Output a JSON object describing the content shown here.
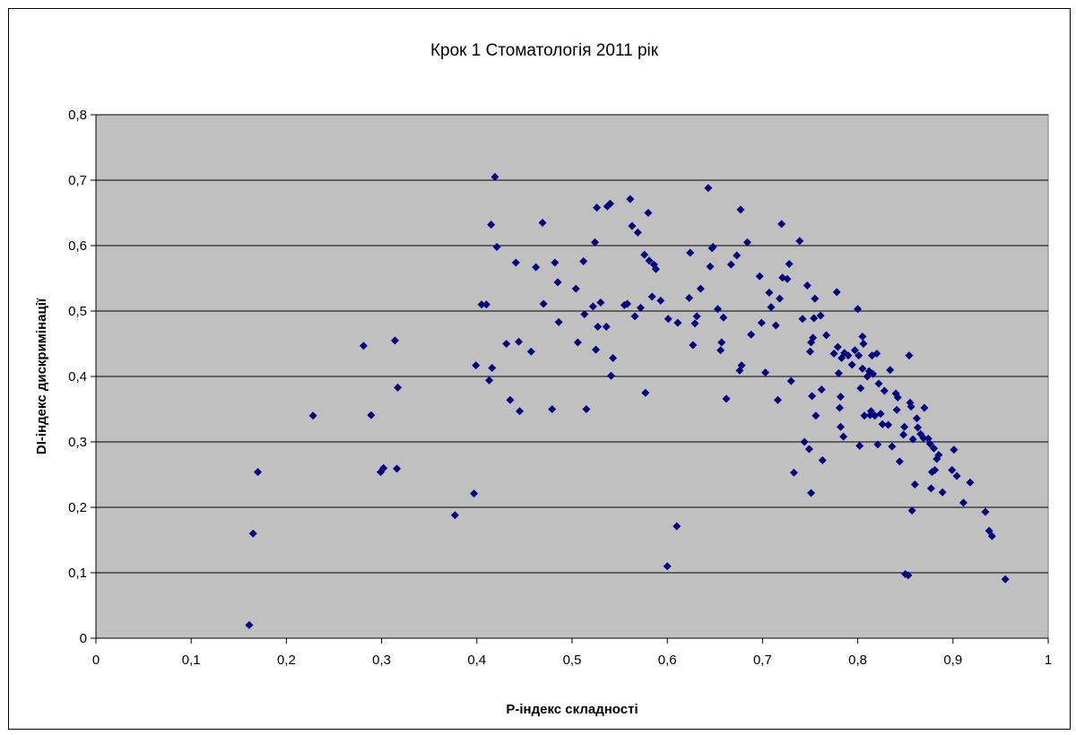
{
  "chart_data": {
    "type": "scatter",
    "title": "Крок 1 Стоматологія 2011 рік",
    "xlabel": "P-індекс складності",
    "ylabel": "DI-індекс дискримінації",
    "xlim": [
      0,
      1
    ],
    "ylim": [
      0,
      0.8
    ],
    "xticks": [
      0,
      0.1,
      0.2,
      0.3,
      0.4,
      0.5,
      0.6,
      0.7,
      0.8,
      0.9,
      1
    ],
    "yticks": [
      0,
      0.1,
      0.2,
      0.3,
      0.4,
      0.5,
      0.6,
      0.7,
      0.8
    ],
    "xtick_labels": [
      "0",
      "0,1",
      "0,2",
      "0,3",
      "0,4",
      "0,5",
      "0,6",
      "0,7",
      "0,8",
      "0,9",
      "1"
    ],
    "ytick_labels": [
      "0",
      "0,1",
      "0,2",
      "0,3",
      "0,4",
      "0,5",
      "0,6",
      "0,7",
      "0,8"
    ],
    "grid": "horizontal",
    "legend": "none",
    "colors": {
      "marker": "#000080",
      "plot_background": "#c0c0c0",
      "gridline": "#000000"
    },
    "points": [
      [
        0.161,
        0.02
      ],
      [
        0.165,
        0.16
      ],
      [
        0.17,
        0.254
      ],
      [
        0.228,
        0.34
      ],
      [
        0.281,
        0.447
      ],
      [
        0.289,
        0.341
      ],
      [
        0.299,
        0.254
      ],
      [
        0.302,
        0.26
      ],
      [
        0.314,
        0.455
      ],
      [
        0.316,
        0.259
      ],
      [
        0.317,
        0.383
      ],
      [
        0.377,
        0.188
      ],
      [
        0.397,
        0.221
      ],
      [
        0.399,
        0.417
      ],
      [
        0.405,
        0.51
      ],
      [
        0.41,
        0.51
      ],
      [
        0.413,
        0.394
      ],
      [
        0.415,
        0.632
      ],
      [
        0.416,
        0.413
      ],
      [
        0.419,
        0.705
      ],
      [
        0.421,
        0.598
      ],
      [
        0.431,
        0.45
      ],
      [
        0.435,
        0.364
      ],
      [
        0.441,
        0.574
      ],
      [
        0.444,
        0.453
      ],
      [
        0.445,
        0.347
      ],
      [
        0.457,
        0.438
      ],
      [
        0.462,
        0.567
      ],
      [
        0.469,
        0.635
      ],
      [
        0.47,
        0.511
      ],
      [
        0.479,
        0.35
      ],
      [
        0.482,
        0.574
      ],
      [
        0.485,
        0.544
      ],
      [
        0.486,
        0.483
      ],
      [
        0.504,
        0.534
      ],
      [
        0.506,
        0.452
      ],
      [
        0.512,
        0.576
      ],
      [
        0.513,
        0.495
      ],
      [
        0.515,
        0.35
      ],
      [
        0.522,
        0.507
      ],
      [
        0.524,
        0.605
      ],
      [
        0.525,
        0.441
      ],
      [
        0.526,
        0.658
      ],
      [
        0.527,
        0.476
      ],
      [
        0.53,
        0.513
      ],
      [
        0.536,
        0.476
      ],
      [
        0.537,
        0.66
      ],
      [
        0.54,
        0.664
      ],
      [
        0.541,
        0.401
      ],
      [
        0.543,
        0.428
      ],
      [
        0.555,
        0.509
      ],
      [
        0.558,
        0.511
      ],
      [
        0.561,
        0.671
      ],
      [
        0.563,
        0.63
      ],
      [
        0.566,
        0.492
      ],
      [
        0.569,
        0.62
      ],
      [
        0.572,
        0.505
      ],
      [
        0.576,
        0.586
      ],
      [
        0.577,
        0.375
      ],
      [
        0.58,
        0.65
      ],
      [
        0.581,
        0.577
      ],
      [
        0.584,
        0.522
      ],
      [
        0.586,
        0.571
      ],
      [
        0.588,
        0.564
      ],
      [
        0.593,
        0.516
      ],
      [
        0.6,
        0.11
      ],
      [
        0.601,
        0.488
      ],
      [
        0.61,
        0.171
      ],
      [
        0.611,
        0.482
      ],
      [
        0.623,
        0.52
      ],
      [
        0.624,
        0.589
      ],
      [
        0.627,
        0.448
      ],
      [
        0.629,
        0.481
      ],
      [
        0.631,
        0.492
      ],
      [
        0.635,
        0.534
      ],
      [
        0.643,
        0.688
      ],
      [
        0.645,
        0.568
      ],
      [
        0.647,
        0.596
      ],
      [
        0.648,
        0.598
      ],
      [
        0.653,
        0.503
      ],
      [
        0.656,
        0.44
      ],
      [
        0.657,
        0.452
      ],
      [
        0.659,
        0.49
      ],
      [
        0.662,
        0.366
      ],
      [
        0.667,
        0.571
      ],
      [
        0.673,
        0.585
      ],
      [
        0.676,
        0.409
      ],
      [
        0.677,
        0.655
      ],
      [
        0.678,
        0.417
      ],
      [
        0.684,
        0.605
      ],
      [
        0.688,
        0.464
      ],
      [
        0.697,
        0.553
      ],
      [
        0.699,
        0.482
      ],
      [
        0.703,
        0.406
      ],
      [
        0.707,
        0.528
      ],
      [
        0.709,
        0.506
      ],
      [
        0.714,
        0.478
      ],
      [
        0.716,
        0.364
      ],
      [
        0.718,
        0.519
      ],
      [
        0.72,
        0.633
      ],
      [
        0.721,
        0.551
      ],
      [
        0.726,
        0.549
      ],
      [
        0.728,
        0.572
      ],
      [
        0.73,
        0.393
      ],
      [
        0.733,
        0.253
      ],
      [
        0.739,
        0.607
      ],
      [
        0.742,
        0.488
      ],
      [
        0.744,
        0.3
      ],
      [
        0.747,
        0.539
      ],
      [
        0.749,
        0.289
      ],
      [
        0.75,
        0.438
      ],
      [
        0.751,
        0.222
      ],
      [
        0.751,
        0.452
      ],
      [
        0.752,
        0.37
      ],
      [
        0.753,
        0.459
      ],
      [
        0.754,
        0.489
      ],
      [
        0.755,
        0.519
      ],
      [
        0.756,
        0.34
      ],
      [
        0.761,
        0.493
      ],
      [
        0.762,
        0.38
      ],
      [
        0.763,
        0.272
      ],
      [
        0.767,
        0.463
      ],
      [
        0.775,
        0.435
      ],
      [
        0.778,
        0.529
      ],
      [
        0.779,
        0.445
      ],
      [
        0.78,
        0.405
      ],
      [
        0.781,
        0.352
      ],
      [
        0.782,
        0.369
      ],
      [
        0.782,
        0.323
      ],
      [
        0.783,
        0.428
      ],
      [
        0.785,
        0.308
      ],
      [
        0.786,
        0.436
      ],
      [
        0.79,
        0.432
      ],
      [
        0.794,
        0.418
      ],
      [
        0.797,
        0.44
      ],
      [
        0.8,
        0.503
      ],
      [
        0.801,
        0.432
      ],
      [
        0.802,
        0.294
      ],
      [
        0.803,
        0.382
      ],
      [
        0.805,
        0.461
      ],
      [
        0.805,
        0.412
      ],
      [
        0.806,
        0.45
      ],
      [
        0.807,
        0.34
      ],
      [
        0.81,
        0.4
      ],
      [
        0.812,
        0.408
      ],
      [
        0.813,
        0.341
      ],
      [
        0.814,
        0.347
      ],
      [
        0.815,
        0.432
      ],
      [
        0.816,
        0.404
      ],
      [
        0.818,
        0.34
      ],
      [
        0.82,
        0.435
      ],
      [
        0.821,
        0.296
      ],
      [
        0.822,
        0.389
      ],
      [
        0.824,
        0.343
      ],
      [
        0.826,
        0.327
      ],
      [
        0.828,
        0.378
      ],
      [
        0.832,
        0.326
      ],
      [
        0.834,
        0.41
      ],
      [
        0.836,
        0.293
      ],
      [
        0.84,
        0.374
      ],
      [
        0.841,
        0.349
      ],
      [
        0.842,
        0.368
      ],
      [
        0.844,
        0.27
      ],
      [
        0.848,
        0.311
      ],
      [
        0.849,
        0.323
      ],
      [
        0.85,
        0.098
      ],
      [
        0.853,
        0.096
      ],
      [
        0.854,
        0.432
      ],
      [
        0.855,
        0.36
      ],
      [
        0.856,
        0.354
      ],
      [
        0.857,
        0.195
      ],
      [
        0.858,
        0.304
      ],
      [
        0.86,
        0.235
      ],
      [
        0.862,
        0.336
      ],
      [
        0.863,
        0.322
      ],
      [
        0.866,
        0.312
      ],
      [
        0.869,
        0.306
      ],
      [
        0.87,
        0.352
      ],
      [
        0.874,
        0.305
      ],
      [
        0.876,
        0.297
      ],
      [
        0.877,
        0.229
      ],
      [
        0.878,
        0.254
      ],
      [
        0.88,
        0.29
      ],
      [
        0.881,
        0.257
      ],
      [
        0.883,
        0.274
      ],
      [
        0.885,
        0.28
      ],
      [
        0.889,
        0.223
      ],
      [
        0.899,
        0.257
      ],
      [
        0.901,
        0.288
      ],
      [
        0.904,
        0.248
      ],
      [
        0.911,
        0.207
      ],
      [
        0.918,
        0.238
      ],
      [
        0.934,
        0.193
      ],
      [
        0.938,
        0.164
      ],
      [
        0.941,
        0.156
      ],
      [
        0.955,
        0.09
      ]
    ]
  }
}
